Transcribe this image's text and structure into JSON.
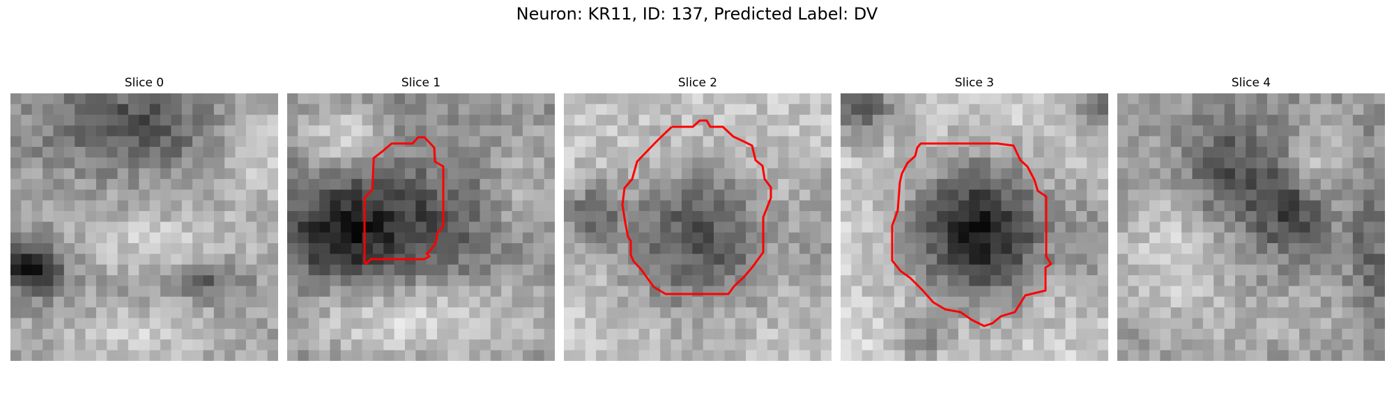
{
  "figure": {
    "title": "Neuron: KR11, ID: 137, Predicted Label: DV"
  },
  "panels": [
    {
      "title": "Slice 0",
      "has_contour": false,
      "pattern": "dark-top-dark-left-bright-cross"
    },
    {
      "title": "Slice 1",
      "has_contour": true,
      "pattern": "dark-center-left-bright-bottom"
    },
    {
      "title": "Slice 2",
      "has_contour": true,
      "pattern": "dark-round-center-bright-rim"
    },
    {
      "title": "Slice 3",
      "has_contour": true,
      "pattern": "dark-round-center-bright-ring"
    },
    {
      "title": "Slice 4",
      "has_contour": false,
      "pattern": "mottled-dark-upper-right"
    }
  ],
  "colors": {
    "contour": "#ff0000",
    "background": "#ffffff"
  },
  "grid": {
    "cells": 25,
    "colormap": "gray"
  }
}
